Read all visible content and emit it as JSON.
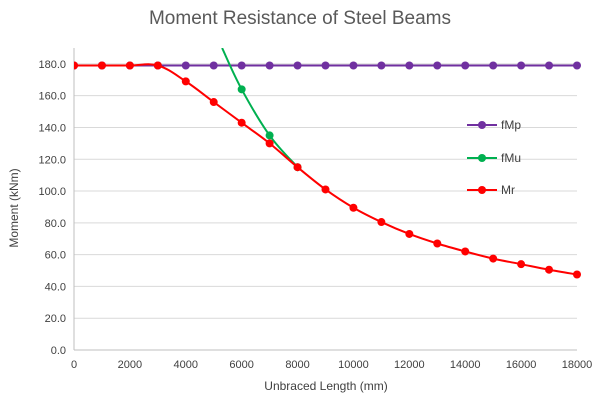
{
  "chart_data": {
    "type": "line",
    "title": "Moment Resistance of Steel Beams",
    "xlabel": "Unbraced Length (mm)",
    "ylabel": "Moment (kNm)",
    "xlim": [
      0,
      18000
    ],
    "ylim": [
      0,
      190
    ],
    "xticks": [
      0,
      2000,
      4000,
      6000,
      8000,
      10000,
      12000,
      14000,
      16000,
      18000
    ],
    "yticks": [
      0,
      20,
      40,
      60,
      80,
      100,
      120,
      140,
      160,
      180
    ],
    "xtick_labels": [
      "0",
      "2000",
      "4000",
      "6000",
      "8000",
      "10000",
      "12000",
      "14000",
      "16000",
      "18000"
    ],
    "ytick_labels": [
      "0.0",
      "20.0",
      "40.0",
      "60.0",
      "80.0",
      "100.0",
      "120.0",
      "140.0",
      "160.0",
      "180.0"
    ],
    "grid": "horizontal",
    "legend_position": "right",
    "series": [
      {
        "name": "fMp",
        "color": "#7030a0",
        "x": [
          0,
          1000,
          2000,
          3000,
          4000,
          5000,
          6000,
          7000,
          8000,
          9000,
          10000,
          11000,
          12000,
          13000,
          14000,
          15000,
          16000,
          17000,
          18000
        ],
        "y": [
          179,
          179,
          179,
          179,
          179,
          179,
          179,
          179,
          179,
          179,
          179,
          179,
          179,
          179,
          179,
          179,
          179,
          179,
          179
        ]
      },
      {
        "name": "fMu",
        "color": "#00b050",
        "x": [
          5300,
          6000,
          7000,
          8000
        ],
        "y": [
          190,
          164,
          135,
          115
        ],
        "marker_points": [
          1,
          2,
          3
        ]
      },
      {
        "name": "Mr",
        "color": "#ff0000",
        "x": [
          0,
          1000,
          2000,
          3000,
          4000,
          5000,
          6000,
          7000,
          8000,
          9000,
          10000,
          11000,
          12000,
          13000,
          14000,
          15000,
          16000,
          17000,
          18000
        ],
        "y": [
          179,
          179,
          179,
          179,
          169,
          156,
          143,
          130,
          115,
          101,
          89.5,
          80.5,
          73,
          67,
          62,
          57.5,
          54,
          50.5,
          47.5
        ]
      }
    ]
  }
}
